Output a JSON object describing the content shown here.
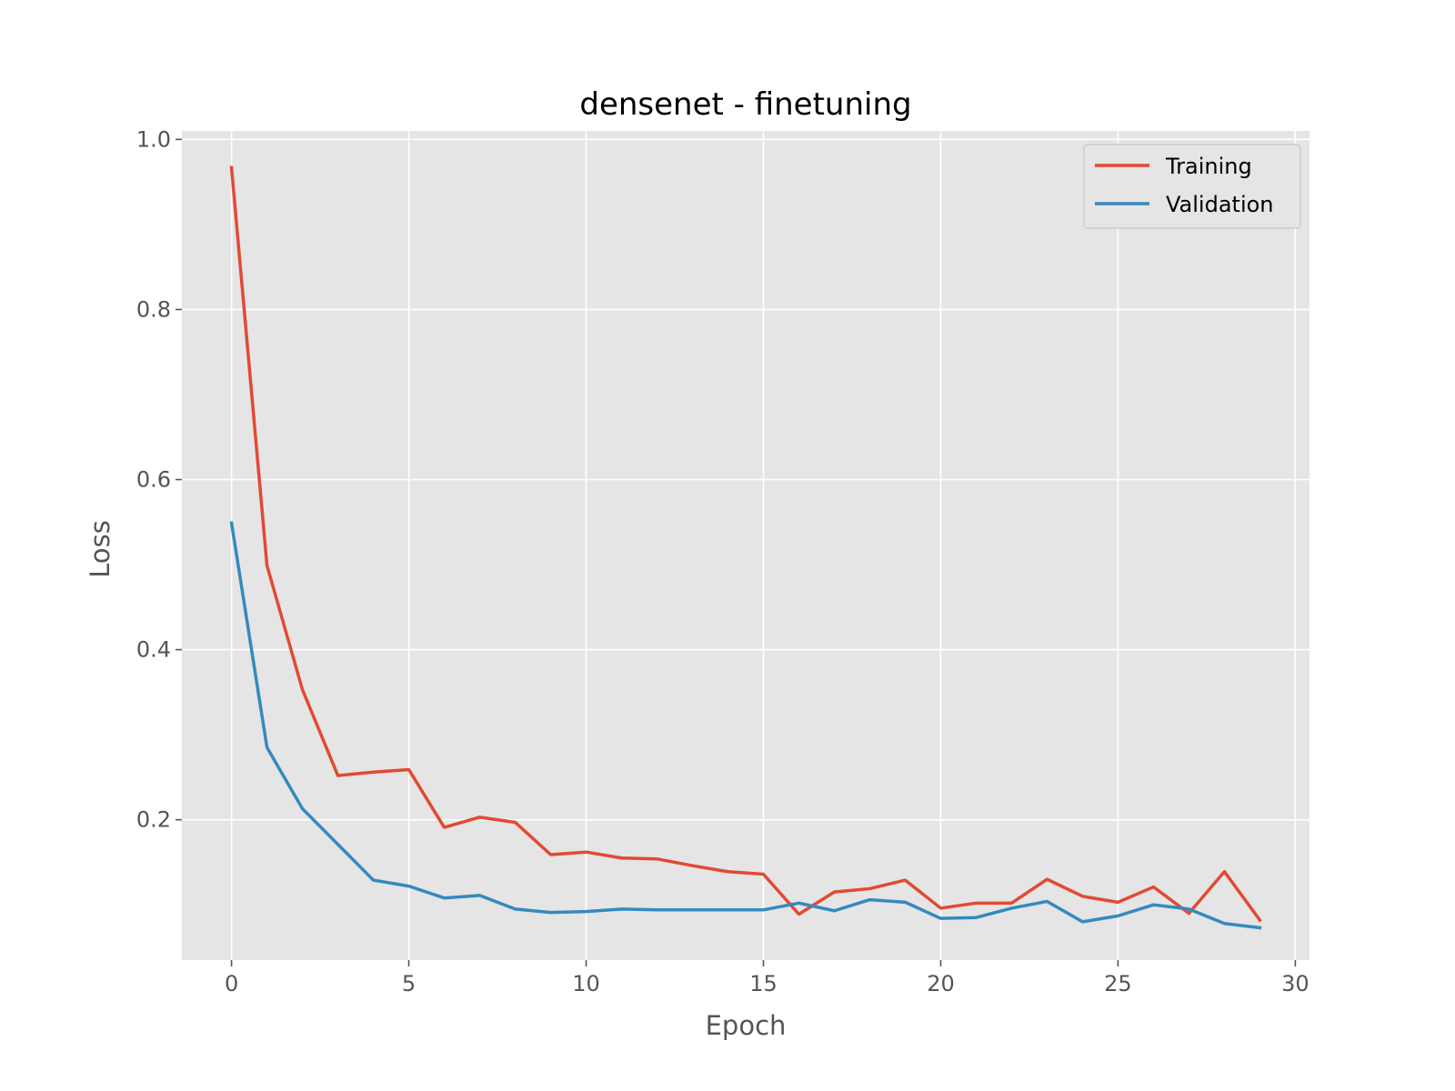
{
  "chart_data": {
    "type": "line",
    "title": "densenet - finetuning",
    "xlabel": "Epoch",
    "ylabel": "Loss",
    "xlim": [
      -1.4,
      30.4
    ],
    "ylim": [
      0.035,
      1.01
    ],
    "xticks": [
      0,
      5,
      10,
      15,
      20,
      25,
      30
    ],
    "yticks": [
      0.2,
      0.4,
      0.6,
      0.8,
      1.0
    ],
    "xtick_labels": [
      "0",
      "5",
      "10",
      "15",
      "20",
      "25",
      "30"
    ],
    "ytick_labels": [
      "0.2",
      "0.4",
      "0.6",
      "0.8",
      "1.0"
    ],
    "grid": true,
    "legend_position": "top-right",
    "x": [
      0,
      1,
      2,
      3,
      4,
      5,
      6,
      7,
      8,
      9,
      10,
      11,
      12,
      13,
      14,
      15,
      16,
      17,
      18,
      19,
      20,
      21,
      22,
      23,
      24,
      25,
      26,
      27,
      28,
      29
    ],
    "series": [
      {
        "name": "Training",
        "color": "#E24A33",
        "values": [
          0.967,
          0.499,
          0.353,
          0.252,
          0.256,
          0.259,
          0.191,
          0.203,
          0.197,
          0.159,
          0.162,
          0.155,
          0.154,
          0.146,
          0.139,
          0.136,
          0.089,
          0.115,
          0.119,
          0.129,
          0.096,
          0.102,
          0.102,
          0.13,
          0.11,
          0.103,
          0.121,
          0.09,
          0.139,
          0.082
        ]
      },
      {
        "name": "Validation",
        "color": "#348ABD",
        "values": [
          0.549,
          0.285,
          0.213,
          0.171,
          0.129,
          0.122,
          0.108,
          0.111,
          0.095,
          0.091,
          0.092,
          0.095,
          0.094,
          0.094,
          0.094,
          0.094,
          0.102,
          0.093,
          0.106,
          0.103,
          0.084,
          0.085,
          0.096,
          0.104,
          0.08,
          0.087,
          0.1,
          0.095,
          0.078,
          0.073
        ]
      }
    ]
  }
}
